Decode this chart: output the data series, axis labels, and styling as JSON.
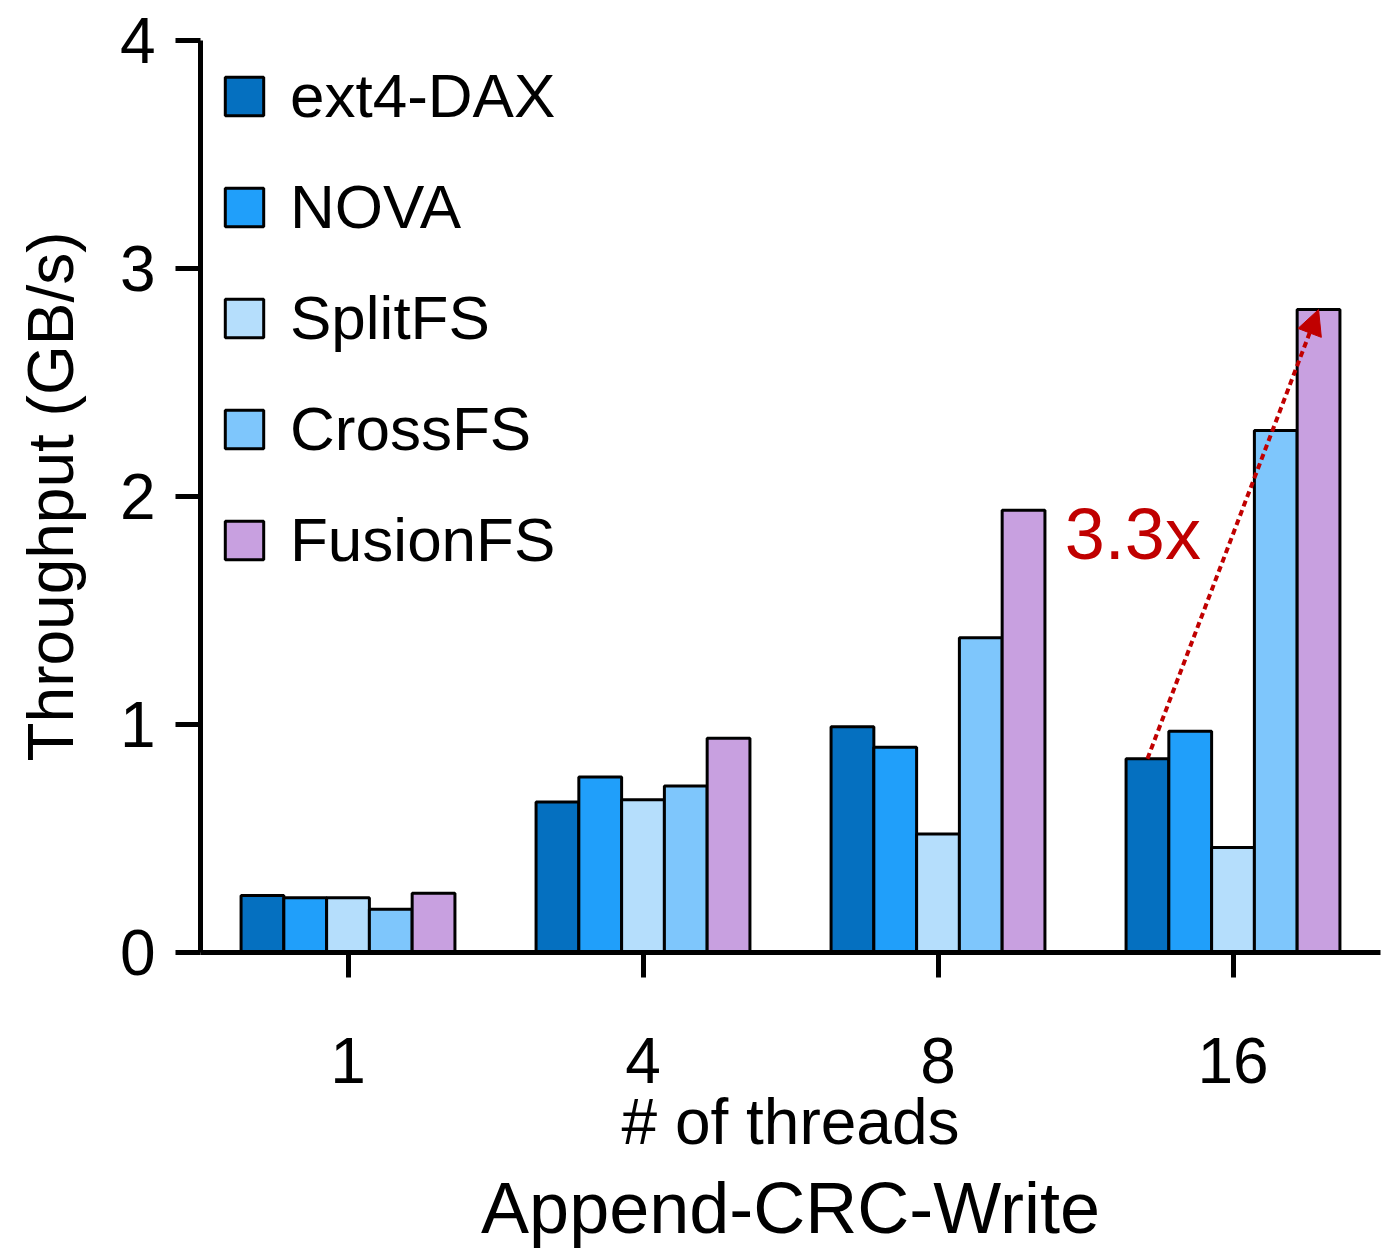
{
  "chart_data": {
    "type": "bar",
    "title": "Append-CRC-Write",
    "xlabel": "# of threads",
    "ylabel": "Throughput (GB/s)",
    "categories": [
      "1",
      "4",
      "8",
      "16"
    ],
    "series": [
      {
        "name": "ext4-DAX",
        "color": "#0570c0",
        "values": [
          0.25,
          0.66,
          0.99,
          0.85
        ]
      },
      {
        "name": "NOVA",
        "color": "#209ffa",
        "values": [
          0.24,
          0.77,
          0.9,
          0.97
        ]
      },
      {
        "name": "SplitFS",
        "color": "#b5defc",
        "values": [
          0.24,
          0.67,
          0.52,
          0.46
        ]
      },
      {
        "name": "CrossFS",
        "color": "#7ec6fc",
        "values": [
          0.19,
          0.73,
          1.38,
          2.29
        ]
      },
      {
        "name": "FusionFS",
        "color": "#c8a0e0",
        "values": [
          0.26,
          0.94,
          1.94,
          2.82
        ]
      }
    ],
    "ylim": [
      0,
      4
    ],
    "yticks": [
      0,
      1,
      2,
      3,
      4
    ],
    "grid": false,
    "legend": "top left",
    "annotations": [
      "3.3x"
    ]
  }
}
